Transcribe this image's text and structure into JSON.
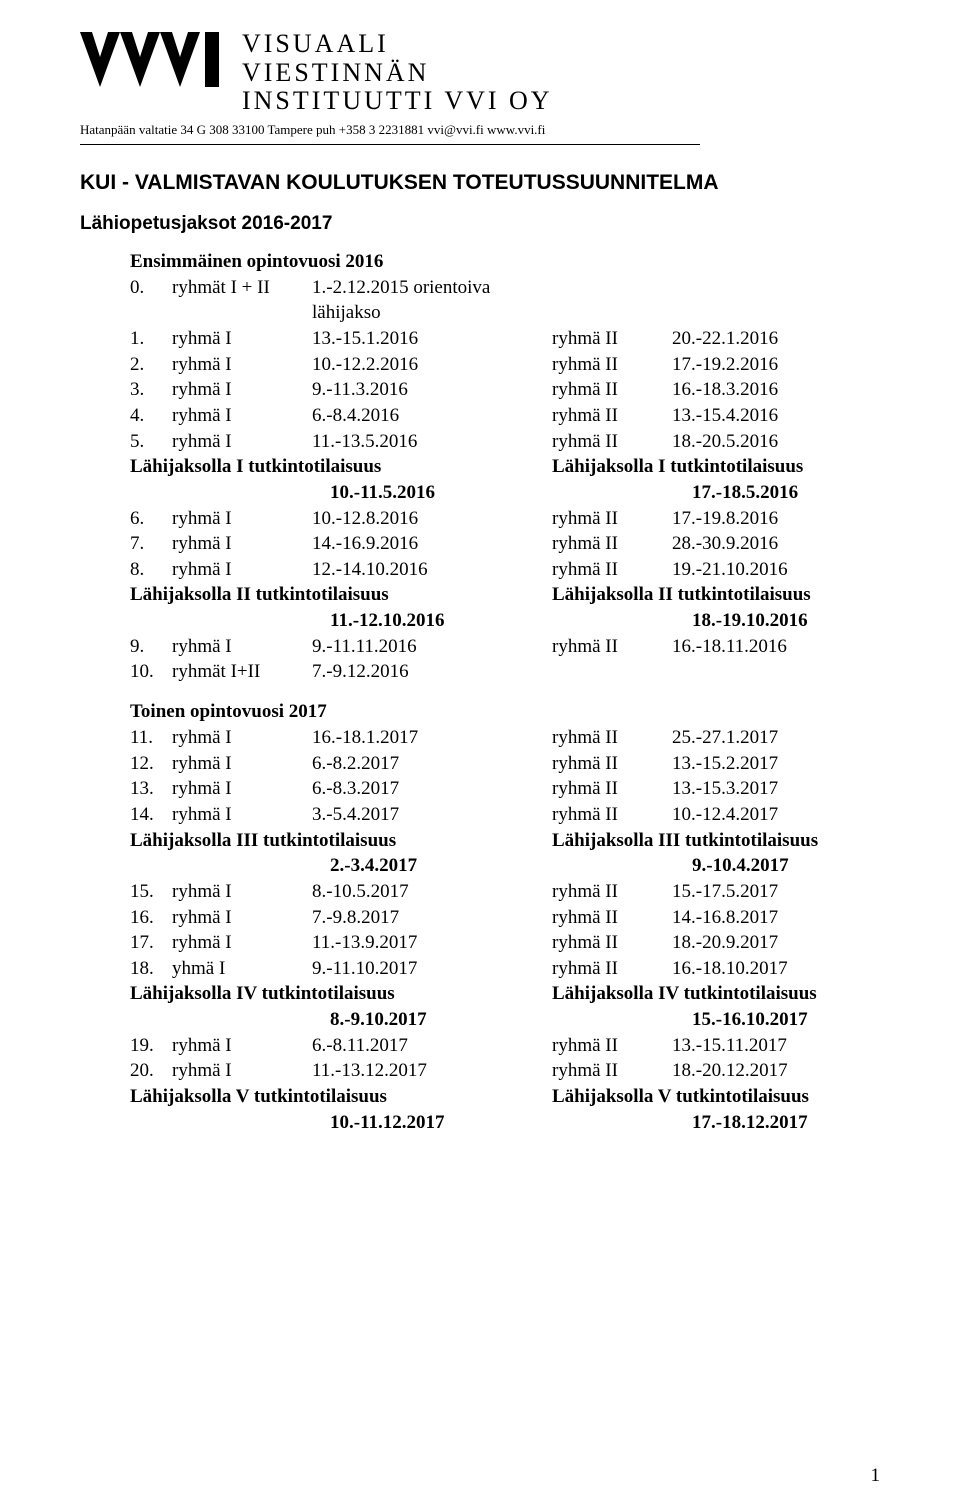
{
  "org": {
    "line1": "VISUAALI",
    "line2": "VIESTINNÄN",
    "line3": "INSTITUUTTI VVI OY",
    "contact": "Hatanpään valtatie 34 G 308 33100 Tampere  puh +358 3 2231881  vvi@vvi.fi  www.vvi.fi"
  },
  "title": "KUI - VALMISTAVAN KOULUTUKSEN TOTEUTUSSUUNNITELMA",
  "subtitle": "Lähiopetusjaksot 2016-2017",
  "year1_head": "Ensimmäinen opintovuosi 2016",
  "year2_head": "Toinen opintovuosi 2017",
  "labels": {
    "ryhma1": "ryhmä I",
    "ryhma2": "ryhmä II",
    "ryhmat12": "ryhmät I + II",
    "ryhmat12b": "ryhmät I+II",
    "yhma1": "yhmä I"
  },
  "year1": {
    "rows": [
      {
        "n": "0.",
        "l": "ryhmät I + II",
        "d1": "1.-2.12.2015 orientoiva lähijakso",
        "l2": "",
        "d2": ""
      },
      {
        "n": "1.",
        "l": "ryhmä I",
        "d1": "13.-15.1.2016",
        "l2": "ryhmä II",
        "d2": "20.-22.1.2016"
      },
      {
        "n": "2.",
        "l": "ryhmä I",
        "d1": "10.-12.2.2016",
        "l2": "ryhmä II",
        "d2": "17.-19.2.2016"
      },
      {
        "n": "3.",
        "l": "ryhmä I",
        "d1": "9.-11.3.2016",
        "l2": "ryhmä II",
        "d2": "16.-18.3.2016"
      },
      {
        "n": "4.",
        "l": "ryhmä I",
        "d1": "6.-8.4.2016",
        "l2": "ryhmä II",
        "d2": "13.-15.4.2016"
      },
      {
        "n": "5.",
        "l": "ryhmä I",
        "d1": "11.-13.5.2016",
        "l2": "ryhmä II",
        "d2": "18.-20.5.2016"
      }
    ],
    "exam1": {
      "leftTitle": "Lähijaksolla I tutkintotilaisuus",
      "rightTitle": "Lähijaksolla I tutkintotilaisuus",
      "leftDate": "10.-11.5.2016",
      "rightDate": "17.-18.5.2016"
    },
    "rows2": [
      {
        "n": "6.",
        "l": "ryhmä I",
        "d1": "10.-12.8.2016",
        "l2": "ryhmä II",
        "d2": "17.-19.8.2016"
      },
      {
        "n": "7.",
        "l": "ryhmä I",
        "d1": "14.-16.9.2016",
        "l2": "ryhmä II",
        "d2": "28.-30.9.2016"
      },
      {
        "n": "8.",
        "l": "ryhmä I",
        "d1": "12.-14.10.2016",
        "l2": "ryhmä II",
        "d2": "19.-21.10.2016"
      }
    ],
    "exam2": {
      "leftTitle": "Lähijaksolla II tutkintotilaisuus",
      "rightTitle": "Lähijaksolla II tutkintotilaisuus",
      "leftDate": "11.-12.10.2016",
      "rightDate": "18.-19.10.2016"
    },
    "rows3": [
      {
        "n": "9.",
        "l": "ryhmä I",
        "d1": "9.-11.11.2016",
        "l2": "ryhmä II",
        "d2": "16.-18.11.2016"
      },
      {
        "n": "10.",
        "l": "ryhmät I+II",
        "d1": "7.-9.12.2016",
        "l2": "",
        "d2": ""
      }
    ]
  },
  "year2": {
    "rows": [
      {
        "n": "11.",
        "l": "ryhmä I",
        "d1": "16.-18.1.2017",
        "l2": "ryhmä II",
        "d2": "25.-27.1.2017"
      },
      {
        "n": "12.",
        "l": "ryhmä I",
        "d1": "6.-8.2.2017",
        "l2": "ryhmä II",
        "d2": "13.-15.2.2017"
      },
      {
        "n": "13.",
        "l": "ryhmä I",
        "d1": "6.-8.3.2017",
        "l2": "ryhmä II",
        "d2": "13.-15.3.2017"
      },
      {
        "n": "14.",
        "l": "ryhmä I",
        "d1": "3.-5.4.2017",
        "l2": "ryhmä II",
        "d2": "10.-12.4.2017"
      }
    ],
    "exam3": {
      "leftTitle": "Lähijaksolla III tutkintotilaisuus",
      "rightTitle": "Lähijaksolla III tutkintotilaisuus",
      "leftDate": "2.-3.4.2017",
      "rightDate": "9.-10.4.2017"
    },
    "rows2": [
      {
        "n": "15.",
        "l": "ryhmä I",
        "d1": "8.-10.5.2017",
        "l2": "ryhmä II",
        "d2": "15.-17.5.2017"
      },
      {
        "n": "16.",
        "l": "ryhmä I",
        "d1": "7.-9.8.2017",
        "l2": "ryhmä II",
        "d2": "14.-16.8.2017"
      },
      {
        "n": "17.",
        "l": "ryhmä I",
        "d1": "11.-13.9.2017",
        "l2": "ryhmä II",
        "d2": "18.-20.9.2017"
      },
      {
        "n": "18.",
        "l": "yhmä I",
        "d1": "9.-11.10.2017",
        "l2": "ryhmä II",
        "d2": "16.-18.10.2017"
      }
    ],
    "exam4": {
      "leftTitle": "Lähijaksolla IV tutkintotilaisuus",
      "rightTitle": "Lähijaksolla IV tutkintotilaisuus",
      "leftDate": "8.-9.10.2017",
      "rightDate": "15.-16.10.2017"
    },
    "rows3": [
      {
        "n": "19.",
        "l": "ryhmä I",
        "d1": "6.-8.11.2017",
        "l2": "ryhmä II",
        "d2": "13.-15.11.2017"
      },
      {
        "n": "20.",
        "l": "ryhmä I",
        "d1": "11.-13.12.2017",
        "l2": "ryhmä II",
        "d2": "18.-20.12.2017"
      }
    ],
    "exam5": {
      "leftTitle": "Lähijaksolla V tutkintotilaisuus",
      "rightTitle": "Lähijaksolla V tutkintotilaisuus",
      "leftDate": "10.-11.12.2017",
      "rightDate": "17.-18.12.2017"
    }
  },
  "pageNumber": "1"
}
